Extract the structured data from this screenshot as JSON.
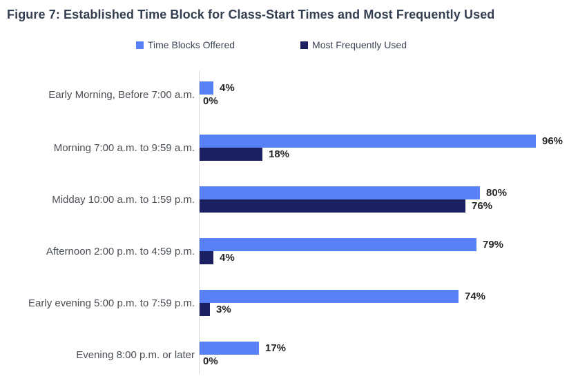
{
  "title": "Figure 7: Established Time Block for Class-Start Times and Most Frequently Used",
  "colors": {
    "offered_bar": "#5781f5",
    "used_bar": "#1b2060",
    "title_text": "#333f50",
    "category_text": "#4a4f55",
    "value_text": "#262626",
    "axis_line": "#d9d9d9",
    "background": "#ffffff"
  },
  "legend": {
    "items": [
      {
        "label": "Time Blocks Offered",
        "color": "#5781f5"
      },
      {
        "label": "Most Frequently Used",
        "color": "#1b2060"
      }
    ]
  },
  "chart_data": {
    "type": "bar",
    "orientation": "horizontal",
    "title": "Figure 7: Established Time Block for Class-Start Times and Most Frequently Used",
    "categories": [
      "Early Morning, Before 7:00 a.m.",
      "Morning 7:00 a.m. to 9:59 a.m.",
      "Midday 10:00 a.m. to 1:59 p.m.",
      "Afternoon 2:00 p.m. to 4:59 p.m.",
      "Early evening 5:00 p.m. to 7:59 p.m.",
      "Evening 8:00 p.m. or later"
    ],
    "series": [
      {
        "name": "Time Blocks Offered",
        "color": "#5781f5",
        "values": [
          4,
          96,
          80,
          79,
          74,
          17
        ],
        "value_labels": [
          "4%",
          "96%",
          "80%",
          "79%",
          "74%",
          "17%"
        ]
      },
      {
        "name": "Most Frequently Used",
        "color": "#1b2060",
        "values": [
          0,
          18,
          76,
          4,
          3,
          0
        ],
        "value_labels": [
          "0%",
          "18%",
          "76%",
          "4%",
          "3%",
          "0%"
        ]
      }
    ],
    "value_suffix": "%",
    "xlim": [
      0,
      100
    ],
    "xlabel": "",
    "ylabel": "",
    "grid": false,
    "legend_position": "top"
  }
}
